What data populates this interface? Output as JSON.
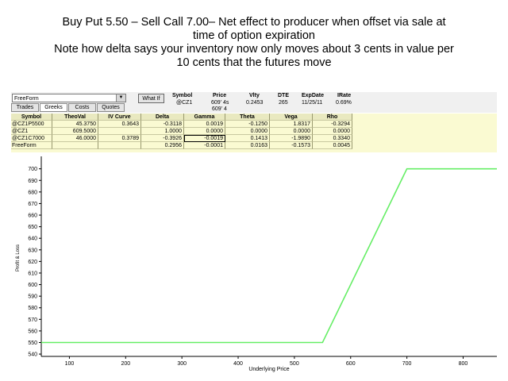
{
  "title": {
    "line1": "Buy Put 5.50 – Sell Call 7.00– Net effect to producer when offset via sale at",
    "line2": "time of option expiration",
    "line3": "Note how delta says your inventory now only moves about 3 cents in value per",
    "line4": "10 cents that the futures move"
  },
  "toolbar": {
    "combo_value": "FreeForm",
    "tabs": [
      "Trades",
      "Greeks",
      "Costs",
      "Quotes"
    ],
    "active_tab": "Greeks",
    "whatif_label": "What If"
  },
  "quote_header": {
    "labels": [
      "Symbol",
      "Price",
      "Vlty",
      "DTE",
      "ExpDate",
      "IRate"
    ],
    "symbol": "@CZ1",
    "price": "609' 4s",
    "price2": "609' 4",
    "vlty": "0.2453",
    "dte": "265",
    "expdate": "11/25/11",
    "irate": "0.69%"
  },
  "grid": {
    "columns": [
      "Symbol",
      "TheoVal",
      "IV Curve",
      "Delta",
      "Gamma",
      "Theta",
      "Vega",
      "Rho"
    ],
    "rows": [
      [
        "@CZ1P5500",
        "45.3750",
        "0.3643",
        "-0.3118",
        "0.0019",
        "-0.1250",
        "1.8317",
        "-0.3294"
      ],
      [
        "@CZ1",
        "609.5000",
        "",
        "1.0000",
        "0.0000",
        "0.0000",
        "0.0000",
        "0.0000"
      ],
      [
        "@CZ1C7000",
        "46.0000",
        "0.3789",
        "-0.3926",
        "-0.0019",
        "0.1413",
        "-1.9890",
        "0.3340"
      ],
      [
        "FreeForm",
        "",
        "",
        "0.2956",
        "-0.0001",
        "0.0163",
        "-0.1573",
        "0.0045"
      ]
    ]
  },
  "chart_data": {
    "type": "line",
    "xlabel": "Underlying Price",
    "ylabel": "Profit & Loss",
    "xlim": [
      50,
      860
    ],
    "ylim": [
      538,
      708
    ],
    "xticks": [
      100,
      200,
      300,
      400,
      500,
      600,
      700,
      800
    ],
    "yticks": [
      540,
      550,
      560,
      570,
      580,
      590,
      600,
      610,
      620,
      630,
      640,
      650,
      660,
      670,
      680,
      690,
      700
    ],
    "line_color": "#66ee66",
    "series": [
      {
        "x": [
          50,
          550,
          700,
          860
        ],
        "y": [
          550,
          550,
          700,
          700
        ]
      }
    ]
  }
}
